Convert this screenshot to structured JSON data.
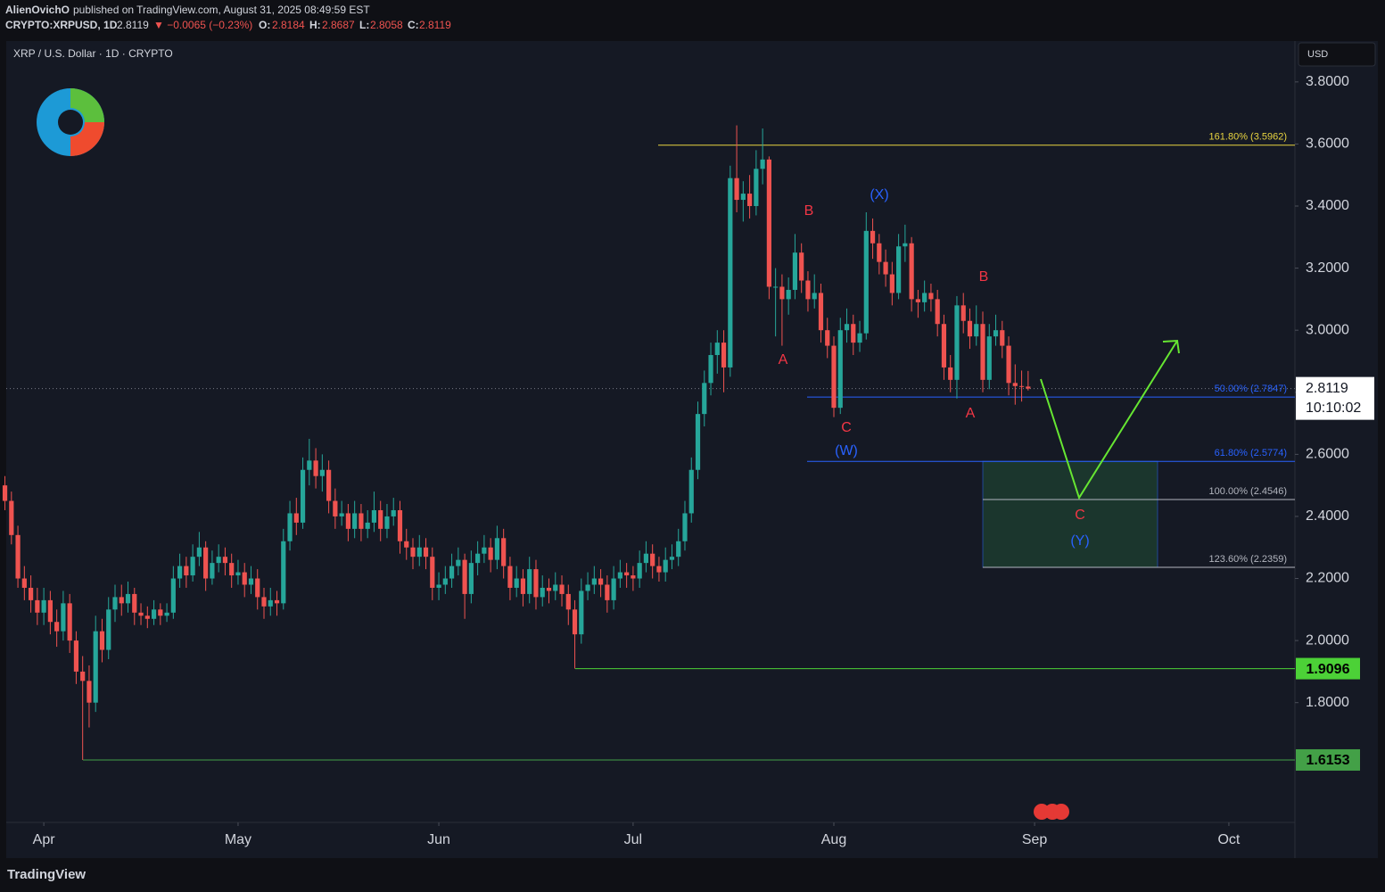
{
  "header": {
    "publisher": "AlienOvichO",
    "published": "published on TradingView.com, August 31, 2025 08:49:59 EST",
    "symbol": "CRYPTO:XRPUSD, 1D",
    "change": "▼ −0.0065 (−0.23%)",
    "o": "O:",
    "h": "H:",
    "l": "L:",
    "c": "C:"
  },
  "chart_data": {
    "type": "candlestick",
    "title": "XRP / U.S. Dollar · 1D · CRYPTO",
    "currency": "USD",
    "countdown": "10:10:02",
    "brand": "TradingView",
    "up_color": "#26a69a",
    "down_color": "#ef5350",
    "xlim": [
      0.2,
      199.2
    ],
    "ylim": [
      1.414,
      3.926
    ],
    "xticks": [
      {
        "value": 6,
        "label": "Apr"
      },
      {
        "value": 36,
        "label": "May"
      },
      {
        "value": 67,
        "label": "Jun"
      },
      {
        "value": 97,
        "label": "Jul"
      },
      {
        "value": 128,
        "label": "Aug"
      },
      {
        "value": 159,
        "label": "Sep"
      },
      {
        "value": 189,
        "label": "Oct"
      }
    ],
    "yticks": [
      {
        "value": 2.0,
        "label": "2.0000"
      },
      {
        "value": 2.2,
        "label": "2.2000"
      },
      {
        "value": 2.4,
        "label": "2.4000"
      },
      {
        "value": 2.6,
        "label": "2.6000"
      },
      {
        "value": 2.8,
        "label": "2.8000"
      },
      {
        "value": 3.0,
        "label": "3.0000"
      },
      {
        "value": 3.2,
        "label": "3.2000"
      },
      {
        "value": 3.4,
        "label": "3.4000"
      },
      {
        "value": 3.6,
        "label": "3.6000"
      },
      {
        "value": 3.8,
        "label": "3.8000"
      },
      {
        "value": 1.8,
        "label": "1.8000"
      }
    ],
    "candles": [
      [
        2.5,
        2.53,
        2.42,
        2.45
      ],
      [
        2.45,
        2.48,
        2.31,
        2.34
      ],
      [
        2.34,
        2.37,
        2.17,
        2.2
      ],
      [
        2.2,
        2.24,
        2.13,
        2.17
      ],
      [
        2.17,
        2.21,
        2.09,
        2.13
      ],
      [
        2.13,
        2.17,
        2.05,
        2.09
      ],
      [
        2.09,
        2.17,
        2.05,
        2.13
      ],
      [
        2.13,
        2.16,
        2.02,
        2.06
      ],
      [
        2.06,
        2.1,
        1.98,
        2.03
      ],
      [
        2.03,
        2.16,
        2.0,
        2.12
      ],
      [
        2.12,
        2.15,
        1.96,
        2.0
      ],
      [
        2.0,
        2.03,
        1.86,
        1.9
      ],
      [
        1.9,
        1.95,
        1.6153,
        1.87
      ],
      [
        1.87,
        1.92,
        1.72,
        1.8
      ],
      [
        1.8,
        2.08,
        1.77,
        2.03
      ],
      [
        2.03,
        2.07,
        1.93,
        1.97
      ],
      [
        1.97,
        2.14,
        1.94,
        2.1
      ],
      [
        2.1,
        2.18,
        2.06,
        2.14
      ],
      [
        2.14,
        2.18,
        2.08,
        2.12
      ],
      [
        2.12,
        2.19,
        2.09,
        2.15
      ],
      [
        2.15,
        2.17,
        2.05,
        2.09
      ],
      [
        2.09,
        2.12,
        2.05,
        2.08
      ],
      [
        2.08,
        2.11,
        2.04,
        2.07
      ],
      [
        2.07,
        2.13,
        2.05,
        2.1
      ],
      [
        2.1,
        2.12,
        2.05,
        2.08
      ],
      [
        2.08,
        2.12,
        2.06,
        2.09
      ],
      [
        2.09,
        2.24,
        2.07,
        2.2
      ],
      [
        2.2,
        2.28,
        2.17,
        2.24
      ],
      [
        2.24,
        2.27,
        2.17,
        2.21
      ],
      [
        2.21,
        2.31,
        2.19,
        2.27
      ],
      [
        2.27,
        2.35,
        2.24,
        2.3
      ],
      [
        2.3,
        2.32,
        2.16,
        2.2
      ],
      [
        2.2,
        2.29,
        2.18,
        2.25
      ],
      [
        2.25,
        2.31,
        2.22,
        2.27
      ],
      [
        2.27,
        2.3,
        2.21,
        2.25
      ],
      [
        2.25,
        2.28,
        2.17,
        2.21
      ],
      [
        2.21,
        2.26,
        2.18,
        2.22
      ],
      [
        2.22,
        2.25,
        2.14,
        2.18
      ],
      [
        2.18,
        2.24,
        2.15,
        2.2
      ],
      [
        2.2,
        2.23,
        2.1,
        2.14
      ],
      [
        2.14,
        2.17,
        2.07,
        2.11
      ],
      [
        2.11,
        2.17,
        2.08,
        2.13
      ],
      [
        2.13,
        2.16,
        2.08,
        2.12
      ],
      [
        2.12,
        2.36,
        2.1,
        2.32
      ],
      [
        2.32,
        2.45,
        2.29,
        2.41
      ],
      [
        2.41,
        2.46,
        2.34,
        2.38
      ],
      [
        2.38,
        2.59,
        2.36,
        2.55
      ],
      [
        2.55,
        2.65,
        2.5,
        2.58
      ],
      [
        2.58,
        2.62,
        2.49,
        2.53
      ],
      [
        2.53,
        2.6,
        2.48,
        2.55
      ],
      [
        2.55,
        2.58,
        2.41,
        2.45
      ],
      [
        2.45,
        2.49,
        2.36,
        2.4
      ],
      [
        2.4,
        2.45,
        2.37,
        2.41
      ],
      [
        2.41,
        2.44,
        2.32,
        2.36
      ],
      [
        2.36,
        2.45,
        2.33,
        2.41
      ],
      [
        2.41,
        2.44,
        2.32,
        2.36
      ],
      [
        2.36,
        2.42,
        2.33,
        2.38
      ],
      [
        2.38,
        2.48,
        2.35,
        2.42
      ],
      [
        2.42,
        2.45,
        2.32,
        2.36
      ],
      [
        2.36,
        2.44,
        2.33,
        2.4
      ],
      [
        2.4,
        2.46,
        2.37,
        2.42
      ],
      [
        2.42,
        2.45,
        2.28,
        2.32
      ],
      [
        2.32,
        2.36,
        2.26,
        2.3
      ],
      [
        2.3,
        2.33,
        2.23,
        2.27
      ],
      [
        2.27,
        2.34,
        2.24,
        2.3
      ],
      [
        2.3,
        2.33,
        2.23,
        2.27
      ],
      [
        2.27,
        2.3,
        2.13,
        2.17
      ],
      [
        2.17,
        2.22,
        2.13,
        2.18
      ],
      [
        2.18,
        2.24,
        2.15,
        2.2
      ],
      [
        2.2,
        2.28,
        2.17,
        2.24
      ],
      [
        2.24,
        2.3,
        2.21,
        2.26
      ],
      [
        2.26,
        2.28,
        2.07,
        2.15
      ],
      [
        2.15,
        2.29,
        2.12,
        2.25
      ],
      [
        2.25,
        2.32,
        2.21,
        2.28
      ],
      [
        2.28,
        2.34,
        2.25,
        2.3
      ],
      [
        2.3,
        2.33,
        2.22,
        2.26
      ],
      [
        2.26,
        2.37,
        2.23,
        2.33
      ],
      [
        2.33,
        2.36,
        2.2,
        2.24
      ],
      [
        2.24,
        2.27,
        2.13,
        2.17
      ],
      [
        2.17,
        2.24,
        2.14,
        2.2
      ],
      [
        2.2,
        2.23,
        2.11,
        2.15
      ],
      [
        2.15,
        2.27,
        2.12,
        2.23
      ],
      [
        2.23,
        2.26,
        2.1,
        2.14
      ],
      [
        2.14,
        2.21,
        2.11,
        2.17
      ],
      [
        2.17,
        2.2,
        2.12,
        2.16
      ],
      [
        2.16,
        2.22,
        2.13,
        2.18
      ],
      [
        2.18,
        2.21,
        2.11,
        2.15
      ],
      [
        2.15,
        2.18,
        2.05,
        2.1
      ],
      [
        2.1,
        2.13,
        1.9096,
        2.02
      ],
      [
        2.02,
        2.2,
        1.99,
        2.16
      ],
      [
        2.16,
        2.22,
        2.13,
        2.18
      ],
      [
        2.18,
        2.24,
        2.15,
        2.2
      ],
      [
        2.2,
        2.23,
        2.14,
        2.18
      ],
      [
        2.18,
        2.21,
        2.09,
        2.13
      ],
      [
        2.13,
        2.24,
        2.1,
        2.2
      ],
      [
        2.2,
        2.26,
        2.17,
        2.22
      ],
      [
        2.22,
        2.25,
        2.17,
        2.21
      ],
      [
        2.21,
        2.24,
        2.16,
        2.2
      ],
      [
        2.2,
        2.29,
        2.17,
        2.25
      ],
      [
        2.25,
        2.32,
        2.22,
        2.28
      ],
      [
        2.28,
        2.31,
        2.2,
        2.24
      ],
      [
        2.24,
        2.27,
        2.19,
        2.22
      ],
      [
        2.22,
        2.3,
        2.19,
        2.26
      ],
      [
        2.26,
        2.31,
        2.23,
        2.27
      ],
      [
        2.27,
        2.36,
        2.24,
        2.32
      ],
      [
        2.32,
        2.45,
        2.29,
        2.41
      ],
      [
        2.41,
        2.59,
        2.38,
        2.55
      ],
      [
        2.55,
        2.77,
        2.52,
        2.73
      ],
      [
        2.73,
        2.87,
        2.69,
        2.83
      ],
      [
        2.83,
        2.96,
        2.79,
        2.92
      ],
      [
        2.92,
        3.0,
        2.86,
        2.96
      ],
      [
        2.96,
        3.0,
        2.8,
        2.88
      ],
      [
        2.88,
        3.53,
        2.85,
        3.49
      ],
      [
        3.49,
        3.66,
        3.38,
        3.42
      ],
      [
        3.42,
        3.48,
        3.35,
        3.44
      ],
      [
        3.44,
        3.5,
        3.36,
        3.4
      ],
      [
        3.4,
        3.58,
        3.37,
        3.52
      ],
      [
        3.52,
        3.65,
        3.47,
        3.55
      ],
      [
        3.55,
        3.56,
        3.1,
        3.14
      ],
      [
        3.14,
        3.2,
        2.98,
        3.14
      ],
      [
        3.14,
        3.18,
        2.95,
        3.1
      ],
      [
        3.1,
        3.17,
        3.05,
        3.13
      ],
      [
        3.13,
        3.31,
        3.1,
        3.25
      ],
      [
        3.25,
        3.28,
        3.12,
        3.16
      ],
      [
        3.16,
        3.19,
        3.06,
        3.1
      ],
      [
        3.1,
        3.18,
        3.07,
        3.12
      ],
      [
        3.12,
        3.15,
        2.96,
        3.0
      ],
      [
        3.0,
        3.04,
        2.91,
        2.95
      ],
      [
        2.95,
        2.98,
        2.72,
        2.75
      ],
      [
        2.75,
        3.04,
        2.73,
        3.0
      ],
      [
        3.0,
        3.07,
        2.96,
        3.02
      ],
      [
        3.02,
        3.05,
        2.92,
        2.96
      ],
      [
        2.96,
        3.03,
        2.93,
        2.99
      ],
      [
        2.99,
        3.38,
        2.97,
        3.32
      ],
      [
        3.32,
        3.36,
        3.23,
        3.28
      ],
      [
        3.28,
        3.31,
        3.18,
        3.22
      ],
      [
        3.22,
        3.26,
        3.14,
        3.18
      ],
      [
        3.18,
        3.22,
        3.08,
        3.12
      ],
      [
        3.12,
        3.31,
        3.1,
        3.27
      ],
      [
        3.27,
        3.34,
        3.22,
        3.28
      ],
      [
        3.28,
        3.3,
        3.06,
        3.1
      ],
      [
        3.1,
        3.13,
        3.04,
        3.09
      ],
      [
        3.09,
        3.16,
        3.06,
        3.12
      ],
      [
        3.12,
        3.15,
        3.06,
        3.1
      ],
      [
        3.1,
        3.13,
        2.98,
        3.02
      ],
      [
        3.02,
        3.05,
        2.84,
        2.88
      ],
      [
        2.88,
        2.92,
        2.8,
        2.84
      ],
      [
        2.84,
        3.11,
        2.78,
        3.08
      ],
      [
        3.08,
        3.12,
        2.99,
        3.03
      ],
      [
        3.03,
        3.07,
        2.94,
        2.98
      ],
      [
        2.98,
        3.08,
        2.95,
        3.02
      ],
      [
        3.02,
        3.06,
        2.8,
        2.84
      ],
      [
        2.84,
        3.02,
        2.81,
        2.98
      ],
      [
        2.98,
        3.05,
        2.95,
        3.0
      ],
      [
        3.0,
        3.03,
        2.91,
        2.95
      ],
      [
        2.95,
        2.98,
        2.79,
        2.83
      ],
      [
        2.83,
        2.89,
        2.76,
        2.82
      ],
      [
        2.82,
        2.87,
        2.77,
        2.8184
      ],
      [
        2.8184,
        2.8687,
        2.8058,
        2.8119
      ]
    ],
    "fibs": [
      {
        "value": 3.5962,
        "label": "161.80% (3.5962)",
        "color": "#e8d440"
      },
      {
        "value": 2.7847,
        "label": "50.00% (2.7847)",
        "color": "#2962ff"
      },
      {
        "value": 2.5774,
        "label": "61.80% (2.5774)",
        "color": "#2962ff"
      },
      {
        "value": 2.4546,
        "label": "100.00% (2.4546)",
        "color": "#b2b5be"
      },
      {
        "value": 2.2359,
        "label": "123.60% (2.2359)",
        "color": "#b2b5be"
      }
    ],
    "levels": [
      {
        "value": 1.9096,
        "color": "#4cd137"
      },
      {
        "value": 1.6153,
        "color": "#43a047"
      }
    ],
    "waves": [
      {
        "label": "A",
        "color": "#f23645"
      },
      {
        "label": "B",
        "color": "#f23645"
      },
      {
        "label": "C",
        "color": "#f23645"
      },
      {
        "label": "(W)",
        "color": "#2962ff"
      },
      {
        "label": "(X)",
        "color": "#2962ff"
      },
      {
        "label": "A",
        "color": "#f23645"
      },
      {
        "label": "B",
        "color": "#f23645"
      },
      {
        "label": "C",
        "color": "#f23645"
      },
      {
        "label": "(Y)",
        "color": "#2962ff"
      }
    ]
  }
}
